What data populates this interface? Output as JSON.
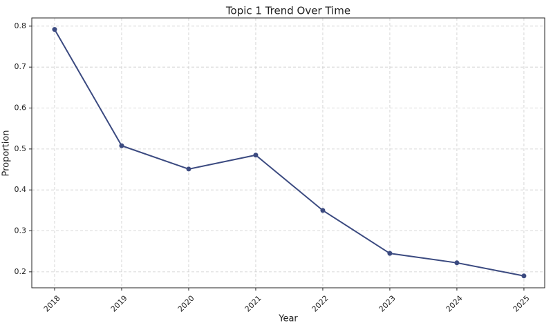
{
  "chart_data": {
    "type": "line",
    "title": "Topic 1 Trend Over Time",
    "x_label": "Year",
    "y_label": "Proportion",
    "x": [
      2018,
      2019,
      2020,
      2021,
      2022,
      2023,
      2024,
      2025
    ],
    "series": [
      {
        "color": "#3b4a80",
        "values": [
          0.792,
          0.508,
          0.451,
          0.485,
          0.35,
          0.245,
          0.222,
          0.19
        ]
      }
    ],
    "xlim": [
      2017.66,
      2025.31
    ],
    "xticks": [
      2018,
      2019,
      2020,
      2021,
      2022,
      2023,
      2024,
      2025
    ],
    "ylim": [
      0.161,
      0.82
    ],
    "yticks": [
      0.2,
      0.3,
      0.4,
      0.5,
      0.6,
      0.7,
      0.8
    ],
    "grid": true
  }
}
